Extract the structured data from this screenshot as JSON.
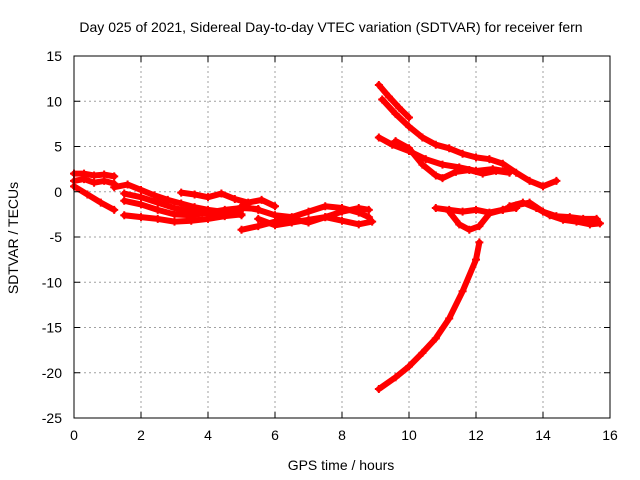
{
  "chart_data": {
    "type": "scatter",
    "title": "Day 025 of 2021, Sidereal Day-to-day VTEC variation (SDTVAR) for receiver fern",
    "xlabel": "GPS time / hours",
    "ylabel": "SDTVAR / TECUs",
    "xlim": [
      0,
      16
    ],
    "ylim": [
      -25,
      15
    ],
    "xticks": [
      0,
      2,
      4,
      6,
      8,
      10,
      12,
      14,
      16
    ],
    "yticks": [
      -25,
      -20,
      -15,
      -10,
      -5,
      0,
      5,
      10,
      15
    ],
    "grid": true,
    "marker": "+",
    "color": "#ff0000",
    "series": [
      {
        "x": [
          0.0,
          0.3,
          0.6,
          0.9,
          1.2
        ],
        "y": [
          2.0,
          2.0,
          1.8,
          1.9,
          1.7
        ]
      },
      {
        "x": [
          0.0,
          0.3,
          0.6,
          0.9,
          1.2
        ],
        "y": [
          1.2,
          1.4,
          1.0,
          1.2,
          0.9
        ]
      },
      {
        "x": [
          0.0,
          0.4,
          0.8,
          1.2
        ],
        "y": [
          0.6,
          -0.3,
          -1.2,
          -2.0
        ]
      },
      {
        "x": [
          1.2,
          1.6,
          2.0,
          2.4,
          2.8,
          3.2,
          3.6,
          4.0,
          4.4,
          4.8,
          5.0
        ],
        "y": [
          0.5,
          0.8,
          0.2,
          -0.4,
          -0.9,
          -1.3,
          -1.7,
          -2.0,
          -2.2,
          -2.4,
          -2.6
        ]
      },
      {
        "x": [
          1.5,
          2.0,
          2.5,
          3.0,
          3.5,
          4.0,
          4.5,
          5.0
        ],
        "y": [
          -0.2,
          -0.6,
          -1.2,
          -1.8,
          -2.2,
          -2.4,
          -2.2,
          -2.0
        ]
      },
      {
        "x": [
          1.5,
          2.0,
          2.5,
          3.0,
          3.5,
          4.0,
          4.5,
          5.0,
          5.5
        ],
        "y": [
          -1.0,
          -1.4,
          -2.0,
          -2.5,
          -2.6,
          -2.3,
          -2.0,
          -1.8,
          -1.9
        ]
      },
      {
        "x": [
          1.5,
          2.0,
          2.5,
          3.0,
          3.5,
          4.0,
          4.5,
          5.0
        ],
        "y": [
          -2.6,
          -2.8,
          -3.0,
          -3.3,
          -3.2,
          -3.0,
          -2.7,
          -2.5
        ]
      },
      {
        "x": [
          3.2,
          3.6,
          4.0,
          4.4,
          4.8,
          5.2,
          5.6,
          6.0
        ],
        "y": [
          -0.1,
          -0.3,
          -0.6,
          -0.2,
          -0.8,
          -1.2,
          -0.9,
          -1.6
        ]
      },
      {
        "x": [
          5.0,
          5.5,
          6.0,
          6.5,
          7.0,
          7.5,
          8.0,
          8.5,
          8.8
        ],
        "y": [
          -1.6,
          -2.0,
          -2.6,
          -2.8,
          -2.2,
          -1.6,
          -1.8,
          -2.3,
          -2.8
        ]
      },
      {
        "x": [
          5.0,
          5.5,
          6.0,
          6.5,
          7.0,
          7.5,
          8.0,
          8.5,
          8.8
        ],
        "y": [
          -4.2,
          -3.8,
          -3.3,
          -3.0,
          -3.4,
          -2.8,
          -2.2,
          -1.8,
          -2.0
        ]
      },
      {
        "x": [
          5.5,
          6.0,
          6.5,
          7.0,
          7.5,
          8.0,
          8.5,
          8.9
        ],
        "y": [
          -3.0,
          -3.7,
          -3.4,
          -3.1,
          -2.8,
          -3.2,
          -3.6,
          -3.3
        ]
      },
      {
        "x": [
          9.1,
          9.4,
          9.7,
          10.0
        ],
        "y": [
          11.8,
          10.5,
          9.3,
          8.2
        ]
      },
      {
        "x": [
          9.2,
          9.6,
          10.0,
          10.4,
          10.8,
          11.2,
          11.6,
          12.0,
          12.4,
          12.8,
          13.2,
          13.6,
          14.0,
          14.4
        ],
        "y": [
          10.2,
          8.6,
          7.2,
          6.0,
          5.2,
          4.8,
          4.2,
          3.8,
          3.6,
          3.1,
          2.1,
          1.2,
          0.6,
          1.2
        ]
      },
      {
        "x": [
          9.1,
          9.5,
          10.0,
          10.5,
          11.0,
          11.5,
          12.0,
          12.5,
          13.0
        ],
        "y": [
          6.0,
          5.2,
          4.5,
          3.6,
          3.0,
          2.7,
          2.3,
          2.5,
          2.2
        ]
      },
      {
        "x": [
          9.6,
          10.0,
          10.4,
          10.8,
          11.0,
          11.4,
          11.8,
          12.2,
          12.6,
          13.0
        ],
        "y": [
          5.6,
          4.8,
          3.0,
          1.8,
          1.5,
          2.2,
          2.4,
          2.0,
          2.3,
          2.1
        ]
      },
      {
        "x": [
          10.8,
          11.2,
          11.6,
          12.0,
          12.4,
          12.8,
          13.2,
          13.6,
          14.0,
          14.4,
          14.8,
          15.2,
          15.6
        ],
        "y": [
          -1.8,
          -2.0,
          -2.2,
          -2.0,
          -2.3,
          -2.0,
          -1.5,
          -1.2,
          -2.2,
          -2.7,
          -2.8,
          -3.0,
          -3.0
        ]
      },
      {
        "x": [
          11.2,
          11.5,
          11.8,
          12.1,
          12.4,
          12.8,
          13.2
        ],
        "y": [
          -2.2,
          -3.6,
          -4.2,
          -3.8,
          -2.4,
          -2.0,
          -1.8
        ]
      },
      {
        "x": [
          13.0,
          13.4,
          13.8,
          14.2,
          14.6,
          15.0,
          15.4,
          15.7
        ],
        "y": [
          -1.6,
          -1.2,
          -1.8,
          -2.6,
          -3.1,
          -3.3,
          -3.6,
          -3.5
        ]
      },
      {
        "x": [
          9.1,
          9.6,
          10.0,
          10.4,
          10.8,
          11.2,
          11.6,
          12.0,
          12.1
        ],
        "y": [
          -21.8,
          -20.5,
          -19.3,
          -17.8,
          -16.2,
          -14.0,
          -11.0,
          -7.5,
          -5.6
        ]
      }
    ]
  }
}
